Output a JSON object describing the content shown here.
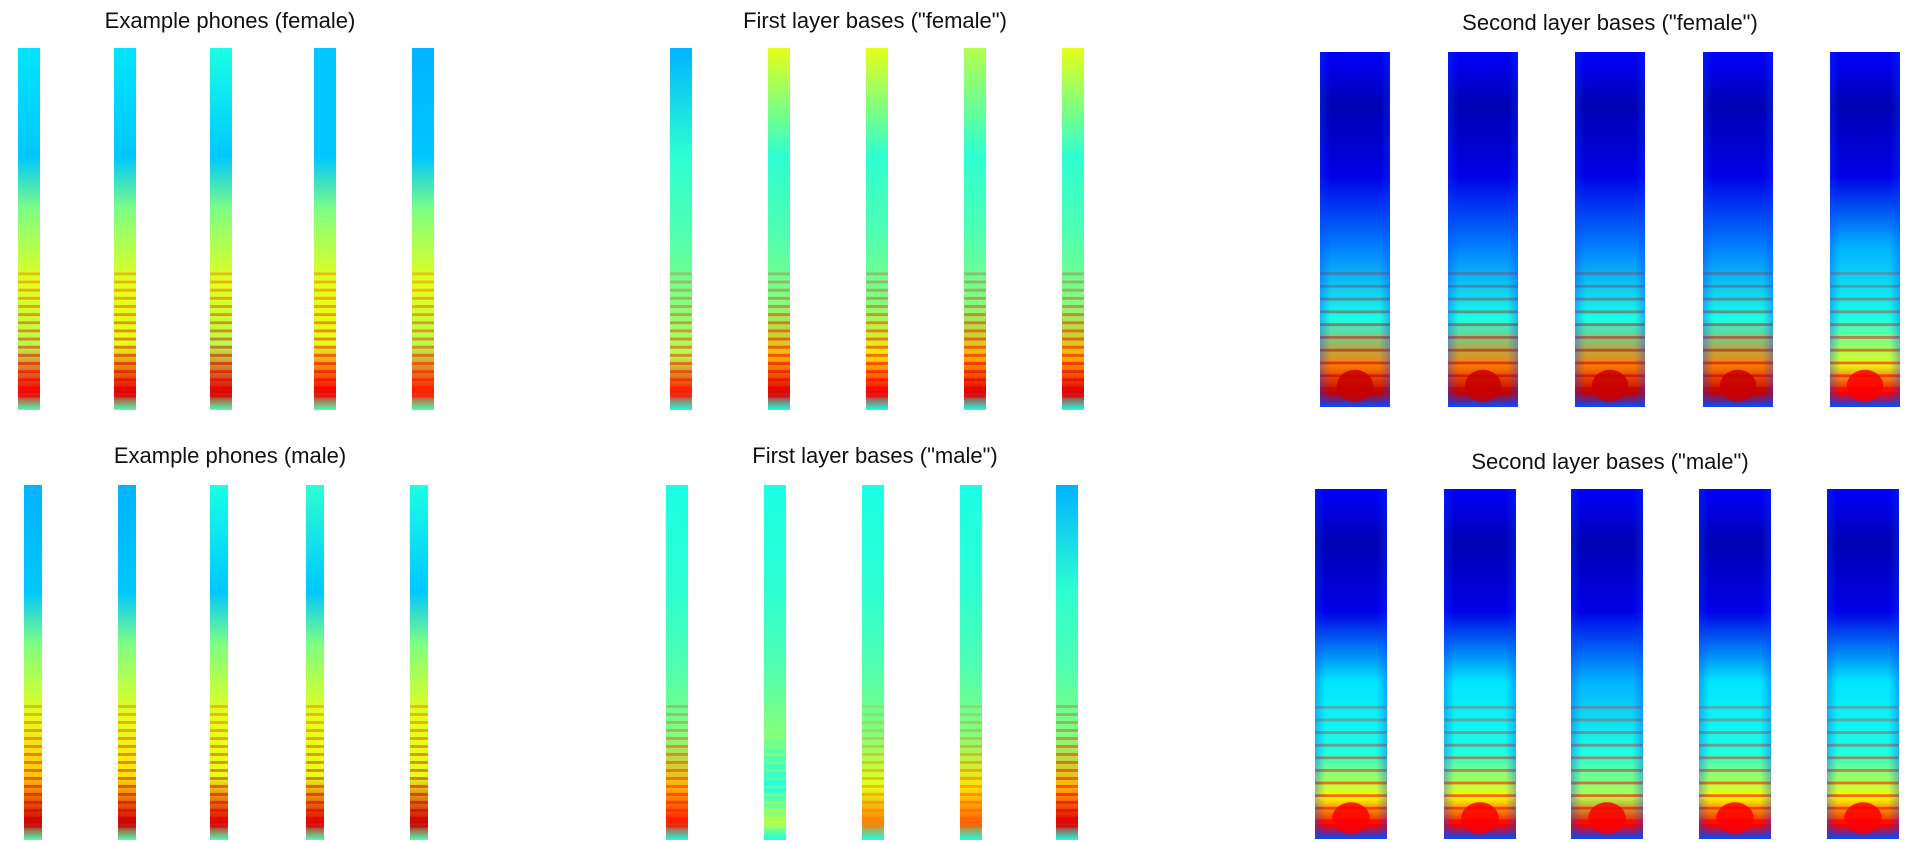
{
  "panels": [
    {
      "title": "Example phones (female)",
      "type": "example",
      "palette": "jet",
      "variants": [
        {
          "hot": 0.88,
          "warm": 0.55,
          "cool": 0.35
        },
        {
          "hot": 0.9,
          "warm": 0.6,
          "cool": 0.35
        },
        {
          "hot": 0.9,
          "warm": 0.55,
          "cool": 0.4
        },
        {
          "hot": 0.88,
          "warm": 0.6,
          "cool": 0.32
        },
        {
          "hot": 0.85,
          "warm": 0.55,
          "cool": 0.3
        }
      ]
    },
    {
      "title": "First layer bases (\"female\")",
      "type": "first",
      "palette": "jet",
      "variants": [
        {
          "hot": 0.85,
          "warm": 0.55,
          "cool": 0.2
        },
        {
          "hot": 0.9,
          "warm": 0.7,
          "cool": 0.5
        },
        {
          "hot": 0.88,
          "warm": 0.65,
          "cool": 0.5
        },
        {
          "hot": 0.9,
          "warm": 0.7,
          "cool": 0.45
        },
        {
          "hot": 0.9,
          "warm": 0.7,
          "cool": 0.5
        }
      ]
    },
    {
      "title": "Second layer bases (\"female\")",
      "type": "second",
      "palette": "jet",
      "variants": [
        {
          "hot": 0.93,
          "warm": 0.75,
          "cool": 0.2
        },
        {
          "hot": 0.93,
          "warm": 0.75,
          "cool": 0.2
        },
        {
          "hot": 0.93,
          "warm": 0.75,
          "cool": 0.2
        },
        {
          "hot": 0.93,
          "warm": 0.75,
          "cool": 0.2
        },
        {
          "hot": 0.88,
          "warm": 0.6,
          "cool": 0.25
        }
      ]
    },
    {
      "title": "Example phones (male)",
      "type": "example",
      "palette": "jet",
      "variants": [
        {
          "hot": 0.92,
          "warm": 0.68,
          "cool": 0.3
        },
        {
          "hot": 0.92,
          "warm": 0.65,
          "cool": 0.3
        },
        {
          "hot": 0.9,
          "warm": 0.6,
          "cool": 0.4
        },
        {
          "hot": 0.9,
          "warm": 0.6,
          "cool": 0.42
        },
        {
          "hot": 0.92,
          "warm": 0.6,
          "cool": 0.4
        }
      ]
    },
    {
      "title": "First layer bases (\"male\")",
      "type": "first",
      "palette": "jet",
      "variants": [
        {
          "hot": 0.85,
          "warm": 0.7,
          "cool": 0.3
        },
        {
          "hot": 0.55,
          "warm": 0.4,
          "cool": 0.3
        },
        {
          "hot": 0.75,
          "warm": 0.6,
          "cool": 0.3
        },
        {
          "hot": 0.78,
          "warm": 0.65,
          "cool": 0.3
        },
        {
          "hot": 0.9,
          "warm": 0.7,
          "cool": 0.2
        }
      ]
    },
    {
      "title": "Second layer bases (\"male\")",
      "type": "second",
      "palette": "jet",
      "variants": [
        {
          "hot": 0.88,
          "warm": 0.62,
          "cool": 0.3
        },
        {
          "hot": 0.88,
          "warm": 0.62,
          "cool": 0.3
        },
        {
          "hot": 0.88,
          "warm": 0.55,
          "cool": 0.25
        },
        {
          "hot": 0.88,
          "warm": 0.62,
          "cool": 0.3
        },
        {
          "hot": 0.88,
          "warm": 0.62,
          "cool": 0.3
        }
      ]
    }
  ]
}
